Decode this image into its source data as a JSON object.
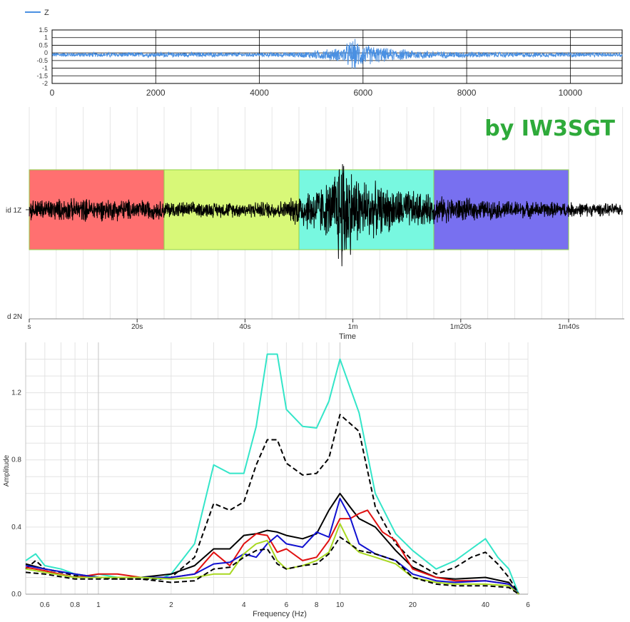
{
  "watermark": "by IW3SGT",
  "colors": {
    "trace_blue": "#4a90e2",
    "watermark_green": "#2eaa3a",
    "teal": "#33e5c8",
    "red": "#e01010",
    "blue": "#1010d0",
    "lime": "#a8d820",
    "black": "#000000",
    "window_red": "#ff7070",
    "window_yellowgreen": "#d8f878",
    "window_aqua": "#78f8e0",
    "window_violet": "#7870f0"
  },
  "chart_data": [
    {
      "type": "line",
      "legend": [
        "Z"
      ],
      "legend_position": "top-left",
      "ylim": [
        -2,
        1.5
      ],
      "y_ticks": [
        "1.5",
        "1",
        "0.5",
        "0",
        "-0.5",
        "-1",
        "-1.5",
        "-2"
      ],
      "xlim": [
        0,
        11000
      ],
      "x_ticks": [
        "0",
        "2000",
        "4000",
        "6000",
        "8000",
        "10000"
      ],
      "grid": true,
      "series": [
        {
          "name": "Z",
          "description_envelope": [
            [
              0,
              0.15
            ],
            [
              2000,
              0.18
            ],
            [
              4000,
              0.15
            ],
            [
              4800,
              0.2
            ],
            [
              5000,
              0.3
            ],
            [
              5600,
              0.5
            ],
            [
              5800,
              1.2
            ],
            [
              6000,
              0.8
            ],
            [
              6500,
              0.45
            ],
            [
              7500,
              0.25
            ],
            [
              9000,
              0.18
            ],
            [
              11000,
              0.15
            ]
          ]
        }
      ]
    },
    {
      "type": "line",
      "xlabel": "Time",
      "x_ticks": [
        "s",
        "20s",
        "40s",
        "1m",
        "1m20s",
        "1m40s"
      ],
      "y_ticks": [
        "id 1Z",
        "d 2N"
      ],
      "grid": true,
      "windows": [
        {
          "start_s": 0,
          "end_s": 25,
          "color": "window_red"
        },
        {
          "start_s": 25,
          "end_s": 50,
          "color": "window_yellowgreen"
        },
        {
          "start_s": 50,
          "end_s": 75,
          "color": "window_aqua"
        },
        {
          "start_s": 75,
          "end_s": 100,
          "color": "window_violet"
        }
      ],
      "amplitude_envelope": [
        [
          0,
          0.22
        ],
        [
          10,
          0.24
        ],
        [
          20,
          0.22
        ],
        [
          30,
          0.16
        ],
        [
          40,
          0.16
        ],
        [
          48,
          0.2
        ],
        [
          50,
          0.38
        ],
        [
          56,
          0.6
        ],
        [
          58,
          1.4
        ],
        [
          60,
          0.8
        ],
        [
          65,
          0.5
        ],
        [
          72,
          0.38
        ],
        [
          76,
          0.28
        ],
        [
          85,
          0.2
        ],
        [
          100,
          0.16
        ],
        [
          110,
          0.12
        ]
      ]
    },
    {
      "type": "line",
      "xlabel": "Frequency (Hz)",
      "ylabel": "Amplitude",
      "x_scale": "log",
      "xlim": [
        0.5,
        60
      ],
      "x_ticks": [
        "0.6",
        "0.8",
        "1",
        "2",
        "4",
        "6",
        "8",
        "10",
        "20",
        "40",
        "6"
      ],
      "ylim": [
        0,
        1.5
      ],
      "y_ticks": [
        "0.0",
        "0.4",
        "0.8",
        "1.2"
      ],
      "grid": true,
      "series": [
        {
          "color": "teal",
          "x": [
            0.5,
            0.55,
            0.6,
            0.7,
            0.8,
            0.9,
            1,
            1.2,
            1.5,
            1.8,
            2,
            2.5,
            3,
            3.5,
            4,
            4.5,
            5,
            5.5,
            6,
            7,
            8,
            9,
            10,
            12,
            14,
            17,
            20,
            25,
            30,
            35,
            40,
            45,
            50,
            55
          ],
          "y": [
            0.2,
            0.24,
            0.17,
            0.15,
            0.12,
            0.1,
            0.12,
            0.1,
            0.1,
            0.09,
            0.12,
            0.3,
            0.77,
            0.72,
            0.72,
            1.0,
            1.43,
            1.43,
            1.1,
            1.0,
            0.99,
            1.15,
            1.4,
            1.08,
            0.6,
            0.36,
            0.26,
            0.15,
            0.2,
            0.27,
            0.33,
            0.22,
            0.15,
            0.0
          ]
        },
        {
          "color": "black",
          "dashed": true,
          "x": [
            0.5,
            0.55,
            0.6,
            0.7,
            0.8,
            0.9,
            1,
            1.2,
            1.5,
            1.8,
            2,
            2.5,
            3,
            3.5,
            4,
            4.5,
            5,
            5.5,
            6,
            7,
            8,
            9,
            10,
            12,
            14,
            17,
            20,
            25,
            30,
            35,
            40,
            45,
            50,
            55
          ],
          "y": [
            0.15,
            0.2,
            0.15,
            0.13,
            0.11,
            0.1,
            0.1,
            0.09,
            0.09,
            0.09,
            0.1,
            0.22,
            0.54,
            0.5,
            0.55,
            0.77,
            0.92,
            0.92,
            0.78,
            0.71,
            0.72,
            0.81,
            1.07,
            0.97,
            0.52,
            0.3,
            0.2,
            0.12,
            0.16,
            0.22,
            0.25,
            0.18,
            0.1,
            0.0
          ]
        },
        {
          "color": "black",
          "x": [
            0.5,
            0.6,
            0.8,
            1,
            1.2,
            1.5,
            2,
            2.5,
            3,
            3.5,
            4,
            4.5,
            5,
            5.5,
            6,
            7,
            8,
            9,
            10,
            11,
            12,
            14,
            17,
            20,
            25,
            30,
            40,
            50,
            55
          ],
          "y": [
            0.18,
            0.15,
            0.12,
            0.1,
            0.1,
            0.1,
            0.12,
            0.17,
            0.27,
            0.27,
            0.35,
            0.36,
            0.38,
            0.37,
            0.35,
            0.33,
            0.36,
            0.5,
            0.6,
            0.52,
            0.45,
            0.4,
            0.26,
            0.16,
            0.1,
            0.09,
            0.1,
            0.07,
            0.0
          ]
        },
        {
          "color": "red",
          "x": [
            0.5,
            0.6,
            0.8,
            1,
            1.2,
            1.5,
            2,
            2.5,
            3,
            3.5,
            4,
            4.5,
            5,
            5.5,
            6,
            7,
            8,
            9,
            10,
            11,
            12,
            13,
            15,
            17,
            20,
            25,
            30,
            40,
            50,
            55
          ],
          "y": [
            0.16,
            0.14,
            0.1,
            0.12,
            0.12,
            0.1,
            0.1,
            0.12,
            0.25,
            0.17,
            0.3,
            0.36,
            0.35,
            0.25,
            0.27,
            0.2,
            0.22,
            0.32,
            0.45,
            0.45,
            0.48,
            0.5,
            0.37,
            0.32,
            0.15,
            0.1,
            0.08,
            0.08,
            0.06,
            0.0
          ]
        },
        {
          "color": "blue",
          "x": [
            0.5,
            0.6,
            0.8,
            1,
            1.2,
            1.5,
            2,
            2.5,
            3,
            3.5,
            4,
            4.5,
            5,
            5.5,
            6,
            7,
            8,
            9,
            10,
            11,
            12,
            14,
            17,
            20,
            25,
            30,
            40,
            50,
            55
          ],
          "y": [
            0.17,
            0.15,
            0.12,
            0.1,
            0.1,
            0.1,
            0.1,
            0.12,
            0.18,
            0.19,
            0.24,
            0.22,
            0.3,
            0.35,
            0.3,
            0.28,
            0.37,
            0.34,
            0.57,
            0.46,
            0.3,
            0.24,
            0.2,
            0.12,
            0.08,
            0.07,
            0.08,
            0.06,
            0.0
          ]
        },
        {
          "color": "lime",
          "x": [
            0.5,
            0.6,
            0.8,
            1,
            1.2,
            1.5,
            2,
            2.5,
            3,
            3.5,
            4,
            4.5,
            5,
            5.5,
            6,
            7,
            8,
            9,
            10,
            11,
            12,
            14,
            17,
            20,
            25,
            30,
            40,
            50,
            55
          ],
          "y": [
            0.15,
            0.13,
            0.1,
            0.1,
            0.1,
            0.1,
            0.09,
            0.1,
            0.12,
            0.12,
            0.24,
            0.3,
            0.32,
            0.2,
            0.15,
            0.17,
            0.2,
            0.25,
            0.42,
            0.3,
            0.25,
            0.22,
            0.18,
            0.1,
            0.07,
            0.06,
            0.06,
            0.05,
            0.0
          ]
        },
        {
          "color": "black",
          "dashed": true,
          "x": [
            0.5,
            0.6,
            0.8,
            1,
            1.2,
            1.5,
            2,
            2.5,
            3,
            3.5,
            4,
            4.5,
            5,
            5.5,
            6,
            7,
            8,
            9,
            10,
            11,
            12,
            14,
            17,
            20,
            25,
            30,
            40,
            50,
            55
          ],
          "y": [
            0.13,
            0.12,
            0.09,
            0.09,
            0.09,
            0.09,
            0.07,
            0.08,
            0.15,
            0.16,
            0.22,
            0.26,
            0.27,
            0.18,
            0.15,
            0.17,
            0.18,
            0.24,
            0.34,
            0.3,
            0.26,
            0.24,
            0.2,
            0.1,
            0.06,
            0.05,
            0.05,
            0.04,
            0.0
          ]
        }
      ]
    }
  ]
}
